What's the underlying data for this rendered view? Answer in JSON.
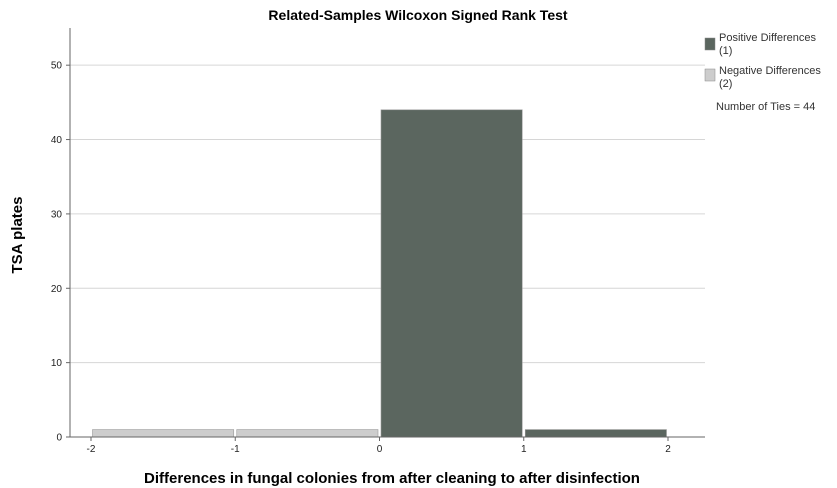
{
  "chart_data": {
    "type": "bar",
    "title": "Related-Samples Wilcoxon Signed Rank Test",
    "xlabel": "Differences in fungal colonies from after cleaning to after disinfection",
    "ylabel": "TSA plates",
    "xlim": [
      -2,
      2
    ],
    "ylim": [
      0,
      55
    ],
    "x_ticks": [
      "-2",
      "-1",
      "0",
      "1",
      "2"
    ],
    "y_ticks": [
      "0",
      "10",
      "20",
      "30",
      "40",
      "50"
    ],
    "grid": true,
    "legend_position": "top-right",
    "bins": [
      {
        "x0": -2,
        "x1": -1,
        "value": 1,
        "group": "negative"
      },
      {
        "x0": -1,
        "x1": 0,
        "value": 1,
        "group": "negative"
      },
      {
        "x0": 0,
        "x1": 1,
        "value": 44,
        "group": "positive"
      },
      {
        "x0": 1,
        "x1": 2,
        "value": 1,
        "group": "positive"
      }
    ],
    "series": [
      {
        "key": "positive",
        "name": "Positive Differences",
        "count_label": "(1)",
        "color": "#5b665f"
      },
      {
        "key": "negative",
        "name": "Negative Differences",
        "count_label": "(2)",
        "color": "#cdcdcd"
      }
    ],
    "annotation": "Number of Ties = 44"
  }
}
